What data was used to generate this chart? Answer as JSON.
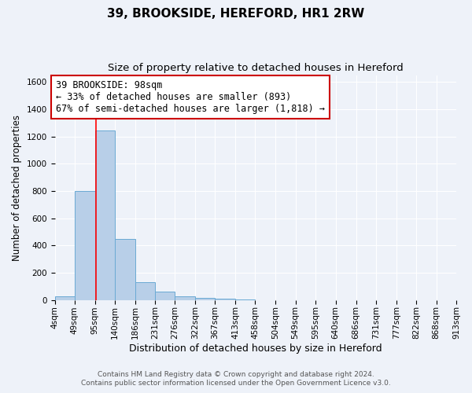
{
  "title": "39, BROOKSIDE, HEREFORD, HR1 2RW",
  "subtitle": "Size of property relative to detached houses in Hereford",
  "xlabel": "Distribution of detached houses by size in Hereford",
  "ylabel": "Number of detached properties",
  "bin_edges": [
    4,
    49,
    95,
    140,
    186,
    231,
    276,
    322,
    367,
    413,
    458,
    504,
    549,
    595,
    640,
    686,
    731,
    777,
    822,
    868,
    913
  ],
  "bar_heights": [
    25,
    800,
    1245,
    450,
    130,
    60,
    25,
    15,
    10,
    5,
    0,
    0,
    0,
    0,
    0,
    0,
    0,
    0,
    0,
    0
  ],
  "bar_color": "#b8cfe8",
  "bar_edge_color": "#6aaad4",
  "red_line_x": 98,
  "ylim": [
    0,
    1650
  ],
  "yticks": [
    0,
    200,
    400,
    600,
    800,
    1000,
    1200,
    1400,
    1600
  ],
  "annotation_title": "39 BROOKSIDE: 98sqm",
  "annotation_line2": "← 33% of detached houses are smaller (893)",
  "annotation_line3": "67% of semi-detached houses are larger (1,818) →",
  "annotation_box_color": "#ffffff",
  "annotation_box_edge": "#cc0000",
  "title_fontsize": 11,
  "subtitle_fontsize": 9.5,
  "xlabel_fontsize": 9,
  "ylabel_fontsize": 8.5,
  "tick_fontsize": 7.5,
  "annotation_fontsize": 8.5,
  "footer_line1": "Contains HM Land Registry data © Crown copyright and database right 2024.",
  "footer_line2": "Contains public sector information licensed under the Open Government Licence v3.0.",
  "background_color": "#eef2f9",
  "grid_color": "#ffffff",
  "x_tick_labels": [
    "4sqm",
    "49sqm",
    "95sqm",
    "140sqm",
    "186sqm",
    "231sqm",
    "276sqm",
    "322sqm",
    "367sqm",
    "413sqm",
    "458sqm",
    "504sqm",
    "549sqm",
    "595sqm",
    "640sqm",
    "686sqm",
    "731sqm",
    "777sqm",
    "822sqm",
    "868sqm",
    "913sqm"
  ]
}
